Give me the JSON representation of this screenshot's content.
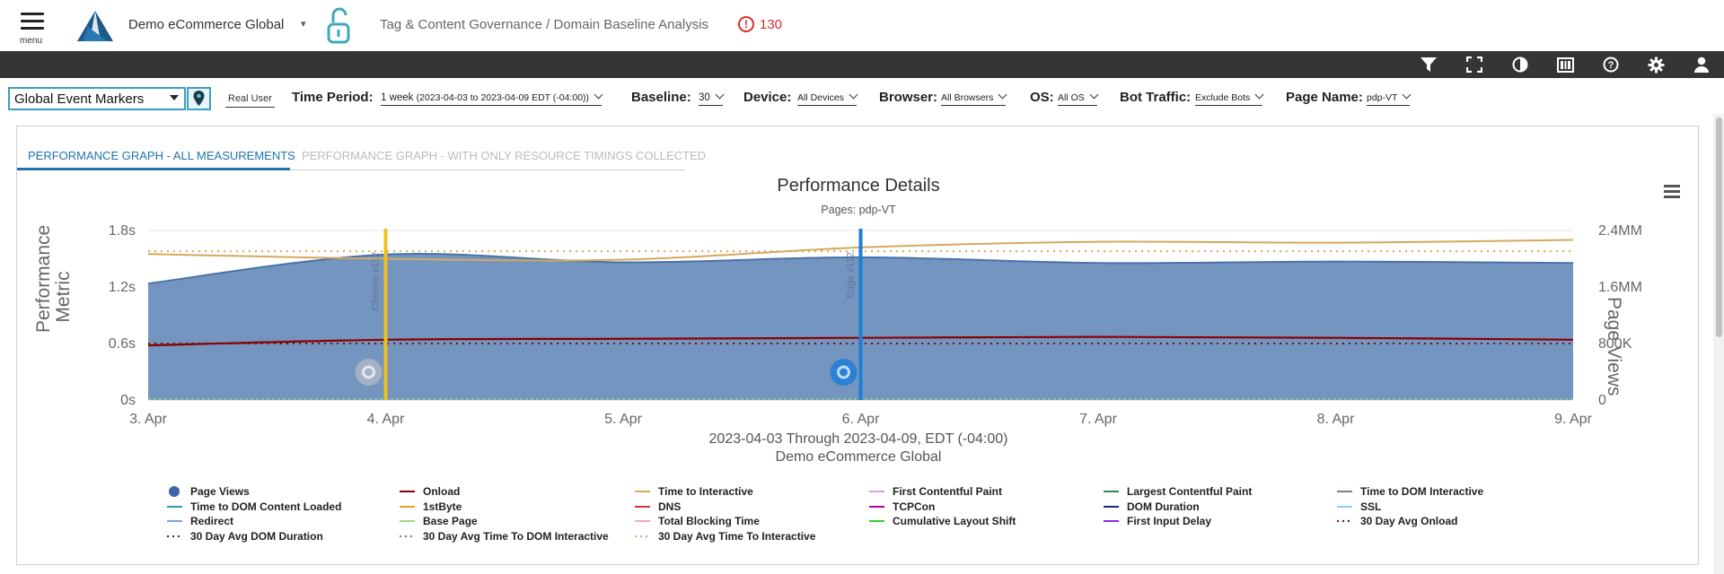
{
  "header": {
    "menu_label": "menu",
    "site_name": "Demo eCommerce Global",
    "breadcrumb": "Tag & Content Governance / Domain Baseline Analysis",
    "alert_count": "130",
    "alert_icon": "exclamation-circle-icon"
  },
  "toolbar": {
    "icons": [
      "filter-icon",
      "fullscreen-icon",
      "contrast-icon",
      "column-view-icon",
      "help-icon",
      "settings-icon",
      "user-icon"
    ]
  },
  "filters": {
    "event_markers": "Global Event Markers",
    "real_user": "Real User",
    "time_period_label": "Time Period:",
    "time_period_value": "1 week",
    "time_period_detail": "(2023-04-03 to 2023-04-09 EDT (-04:00))",
    "baseline_label": "Baseline:",
    "baseline_value": "30",
    "device_label": "Device:",
    "device_value": "All Devices",
    "browser_label": "Browser:",
    "browser_value": "All Browsers",
    "os_label": "OS:",
    "os_value": "All OS",
    "bot_label": "Bot Traffic:",
    "bot_value": "Exclude Bots",
    "page_label": "Page Name:",
    "page_value": "pdp-VT"
  },
  "tabs": [
    {
      "label": "PERFORMANCE GRAPH - ALL MEASUREMENTS",
      "active": true
    },
    {
      "label": "PERFORMANCE GRAPH - WITH ONLY RESOURCE TIMINGS COLLECTED",
      "active": false
    }
  ],
  "chart_data": {
    "type": "area",
    "title": "Performance Details",
    "subtitle": "Pages: pdp-VT",
    "ylabel_left": "Performance Metric",
    "ylabel_right": "Page Views",
    "caption_line1": "2023-04-03 Through 2023-04-09, EDT (-04:00)",
    "caption_line2": "Demo eCommerce Global",
    "x_categories": [
      "3. Apr",
      "4. Apr",
      "5. Apr",
      "6. Apr",
      "7. Apr",
      "8. Apr",
      "9. Apr"
    ],
    "y_left_ticks": [
      "0s",
      "0.6s",
      "1.2s",
      "1.8s"
    ],
    "y_left_range": [
      0,
      1.8
    ],
    "y_right_ticks": [
      "0",
      "800K",
      "1.6MM",
      "2.4MM"
    ],
    "y_right_range": [
      0,
      2400000
    ],
    "page_views": [
      1650000,
      2060000,
      1950000,
      2020000,
      1940000,
      1960000,
      1940000
    ],
    "onload": [
      0.58,
      0.64,
      0.65,
      0.66,
      0.67,
      0.66,
      0.64
    ],
    "time_to_interactive": [
      1.55,
      1.5,
      1.49,
      1.62,
      1.68,
      1.67,
      1.7
    ],
    "avg_30day_onload": [
      0.6,
      0.6,
      0.6,
      0.6,
      0.6,
      0.6,
      0.6
    ],
    "avg_30day_tti": [
      1.58,
      1.58,
      1.58,
      1.58,
      1.58,
      1.58,
      1.58
    ],
    "events": [
      {
        "x": "4. Apr",
        "label": "Chrome v112",
        "color": "#f2c01b",
        "icon": "chrome-icon"
      },
      {
        "x": "6. Apr",
        "label": "Edge v112",
        "color": "#1e7ed6",
        "icon": "edge-icon"
      }
    ],
    "grid": true,
    "legend_position": "bottom",
    "colors": {
      "page_views": "#4a72aa",
      "onload": "#8b0000",
      "time_to_interactive": "#d4a95e"
    }
  },
  "legend": [
    {
      "label": "Page Views",
      "color": "#3e66a6",
      "style": "dot"
    },
    {
      "label": "Onload",
      "color": "#8b0000",
      "style": "line"
    },
    {
      "label": "Time to Interactive",
      "color": "#d4a95e",
      "style": "line"
    },
    {
      "label": "First Contentful Paint",
      "color": "#d8a1d8",
      "style": "line"
    },
    {
      "label": "Largest Contentful Paint",
      "color": "#2e8b57",
      "style": "line"
    },
    {
      "label": "Time to DOM Interactive",
      "color": "#708090",
      "style": "line"
    },
    {
      "label": "Time to DOM Content Loaded",
      "color": "#20a0b0",
      "style": "line"
    },
    {
      "label": "1stByte",
      "color": "#e3a21a",
      "style": "line"
    },
    {
      "label": "DNS",
      "color": "#e03040",
      "style": "line"
    },
    {
      "label": "TCPCon",
      "color": "#b000b0",
      "style": "line"
    },
    {
      "label": "DOM Duration",
      "color": "#1a2e6e",
      "style": "line"
    },
    {
      "label": "SSL",
      "color": "#87ceeb",
      "style": "line"
    },
    {
      "label": "Redirect",
      "color": "#6fa8dc",
      "style": "line"
    },
    {
      "label": "Base Page",
      "color": "#9bd88a",
      "style": "line"
    },
    {
      "label": "Total Blocking Time",
      "color": "#f4a6c8",
      "style": "line"
    },
    {
      "label": "Cumulative Layout Shift",
      "color": "#32cd32",
      "style": "line"
    },
    {
      "label": "First Input Delay",
      "color": "#8a2be2",
      "style": "line"
    },
    {
      "label": "30 Day Avg Onload",
      "color": "#8b0000",
      "style": "dotted"
    },
    {
      "label": "30 Day Avg DOM Duration",
      "color": "#1a2e6e",
      "style": "dotted"
    },
    {
      "label": "30 Day Avg Time To DOM Interactive",
      "color": "#6a7a8a",
      "style": "dotted"
    },
    {
      "label": "30 Day Avg Time To Interactive",
      "color": "#d4a95e",
      "style": "dotted"
    }
  ]
}
